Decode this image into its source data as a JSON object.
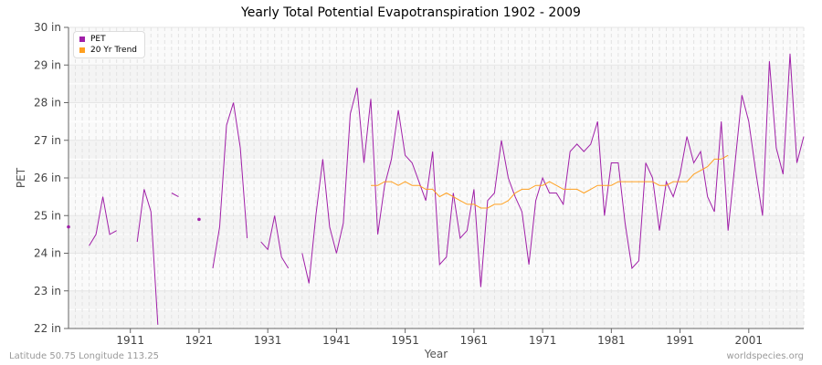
{
  "chart_data": {
    "type": "line",
    "title": "Yearly Total Potential Evapotranspiration 1902 - 2009",
    "xlabel": "Year",
    "ylabel": "PET",
    "xlim": [
      1902,
      2009
    ],
    "ylim": [
      22,
      30
    ],
    "y_unit": "in",
    "x_ticks": [
      1911,
      1921,
      1931,
      1941,
      1951,
      1961,
      1971,
      1981,
      1991,
      2001
    ],
    "y_ticks": [
      22,
      23,
      24,
      25,
      26,
      27,
      28,
      29,
      30
    ],
    "y_tick_labels": [
      "22 in",
      "23 in",
      "24 in",
      "25 in",
      "26 in",
      "27 in",
      "28 in",
      "29 in",
      "30 in"
    ],
    "grid": true,
    "legend_position": "top-left",
    "x_start": 1902,
    "series": [
      {
        "name": "PET",
        "color": "#a020a8",
        "values": [
          24.7,
          null,
          null,
          24.2,
          24.5,
          25.5,
          24.5,
          24.6,
          null,
          null,
          24.3,
          25.7,
          25.1,
          22.1,
          null,
          25.6,
          25.5,
          null,
          null,
          24.9,
          null,
          23.6,
          24.7,
          27.4,
          28.0,
          26.8,
          24.4,
          null,
          24.3,
          24.1,
          25.0,
          23.9,
          23.6,
          null,
          24.0,
          23.2,
          25.0,
          26.5,
          24.7,
          24.0,
          24.8,
          27.7,
          28.4,
          26.4,
          28.1,
          24.5,
          25.8,
          26.5,
          27.8,
          26.6,
          26.4,
          25.9,
          25.4,
          26.7,
          23.7,
          23.9,
          25.6,
          24.4,
          24.6,
          25.7,
          23.1,
          25.4,
          25.6,
          27.0,
          26.0,
          25.5,
          25.1,
          23.7,
          25.4,
          26.0,
          25.6,
          25.6,
          25.3,
          26.7,
          26.9,
          26.7,
          26.9,
          27.5,
          25.0,
          26.4,
          26.4,
          24.8,
          23.6,
          23.8,
          26.4,
          26.0,
          24.6,
          25.9,
          25.5,
          26.1,
          27.1,
          26.4,
          26.7,
          25.5,
          25.1,
          27.5,
          24.6,
          26.4,
          28.2,
          27.5,
          26.2,
          25.0,
          29.1,
          26.8,
          26.1,
          29.3,
          26.4,
          27.1
        ]
      },
      {
        "name": "20 Yr Trend",
        "color": "#ffa020",
        "x_start": 1946,
        "values": [
          25.8,
          25.8,
          25.9,
          25.9,
          25.8,
          25.9,
          25.8,
          25.8,
          25.7,
          25.7,
          25.5,
          25.6,
          25.5,
          25.4,
          25.3,
          25.3,
          25.2,
          25.2,
          25.3,
          25.3,
          25.4,
          25.6,
          25.7,
          25.7,
          25.8,
          25.8,
          25.9,
          25.8,
          25.7,
          25.7,
          25.7,
          25.6,
          25.7,
          25.8,
          25.8,
          25.8,
          25.9,
          25.9,
          25.9,
          25.9,
          25.9,
          25.9,
          25.8,
          25.8,
          25.9,
          25.9,
          25.9,
          26.1,
          26.2,
          26.3,
          26.5,
          26.5,
          26.6
        ]
      }
    ]
  },
  "footer": {
    "left": "Latitude 50.75 Longitude 113.25",
    "right": "worldspecies.org"
  }
}
